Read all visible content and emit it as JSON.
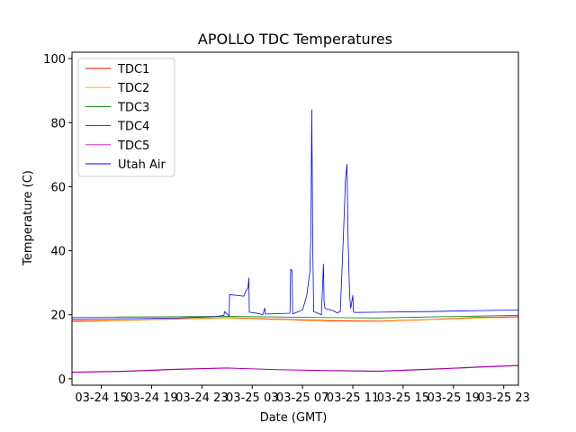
{
  "chart_data": {
    "type": "line",
    "title": "APOLLO TDC Temperatures",
    "xlabel": "Date (GMT)",
    "ylabel": "Temperature (C)",
    "x_type": "datetime",
    "xlim": [
      "2025-03-24 12:40",
      "2025-03-26 00:10"
    ],
    "ylim": [
      -2,
      102
    ],
    "x_ticks": [
      "03-24 15",
      "03-24 19",
      "03-24 23",
      "03-25 03",
      "03-25 07",
      "03-25 11",
      "03-25 15",
      "03-25 19",
      "03-25 23"
    ],
    "y_ticks": [
      "0",
      "20",
      "40",
      "60",
      "80",
      "100"
    ],
    "grid": false,
    "legend_position": "top-left",
    "series": [
      {
        "name": "TDC1",
        "color": "#ff0000",
        "x": [
          "2025-03-24 12:40",
          "2025-03-24 17:00",
          "2025-03-24 21:00",
          "2025-03-25 01:00",
          "2025-03-25 05:00",
          "2025-03-25 09:00",
          "2025-03-25 13:00",
          "2025-03-25 17:00",
          "2025-03-25 21:00",
          "2025-03-26 00:10"
        ],
        "values": [
          18.0,
          18.3,
          18.7,
          19.1,
          18.6,
          18.2,
          18.0,
          18.5,
          19.2,
          19.4
        ]
      },
      {
        "name": "TDC2",
        "color": "#ffa500",
        "x": [
          "2025-03-24 12:40",
          "2025-03-24 17:00",
          "2025-03-24 21:00",
          "2025-03-25 01:00",
          "2025-03-25 05:00",
          "2025-03-25 09:00",
          "2025-03-25 13:00",
          "2025-03-25 17:00",
          "2025-03-25 21:00",
          "2025-03-26 00:10"
        ],
        "values": [
          17.8,
          18.2,
          18.6,
          19.0,
          18.5,
          18.0,
          17.9,
          18.4,
          19.0,
          19.2
        ]
      },
      {
        "name": "TDC3",
        "color": "#008000",
        "x": [
          "2025-03-24 12:40",
          "2025-03-24 17:00",
          "2025-03-24 21:00",
          "2025-03-25 01:00",
          "2025-03-25 05:00",
          "2025-03-25 09:00",
          "2025-03-25 13:00",
          "2025-03-25 17:00",
          "2025-03-25 21:00",
          "2025-03-26 00:10"
        ],
        "values": [
          19.2,
          19.3,
          19.4,
          19.5,
          19.3,
          19.1,
          19.0,
          19.3,
          19.6,
          19.8
        ]
      },
      {
        "name": "TDC4",
        "color": "#800080",
        "x": [
          "2025-03-24 12:40",
          "2025-03-24 17:00",
          "2025-03-24 21:00",
          "2025-03-25 01:00",
          "2025-03-25 05:00",
          "2025-03-25 09:00",
          "2025-03-25 13:00",
          "2025-03-25 17:00",
          "2025-03-25 21:00",
          "2025-03-26 00:10"
        ],
        "values": [
          2.1,
          2.4,
          3.0,
          3.4,
          2.9,
          2.6,
          2.4,
          3.0,
          3.7,
          4.2
        ]
      },
      {
        "name": "TDC5",
        "color": "#c000c0",
        "x": [
          "2025-03-24 12:40",
          "2025-03-24 17:00",
          "2025-03-24 21:00",
          "2025-03-25 01:00",
          "2025-03-25 05:00",
          "2025-03-25 09:00",
          "2025-03-25 13:00",
          "2025-03-25 17:00",
          "2025-03-25 21:00",
          "2025-03-26 00:10"
        ],
        "values": [
          2.0,
          2.3,
          2.9,
          3.3,
          2.8,
          2.5,
          2.3,
          2.9,
          3.6,
          4.1
        ]
      },
      {
        "name": "Utah Air",
        "color": "#0000ff",
        "x": [
          "2025-03-24 12:40",
          "2025-03-24 17:00",
          "2025-03-24 21:00",
          "2025-03-25 00:00",
          "2025-03-25 00:45",
          "2025-03-25 00:48",
          "2025-03-25 01:10",
          "2025-03-25 01:12",
          "2025-03-25 02:20",
          "2025-03-25 02:30",
          "2025-03-25 02:40",
          "2025-03-25 02:44",
          "2025-03-25 02:46",
          "2025-03-25 03:30",
          "2025-03-25 03:50",
          "2025-03-25 04:00",
          "2025-03-25 04:02",
          "2025-03-25 06:00",
          "2025-03-25 06:03",
          "2025-03-25 06:10",
          "2025-03-25 06:13",
          "2025-03-25 07:00",
          "2025-03-25 07:20",
          "2025-03-25 07:35",
          "2025-03-25 07:40",
          "2025-03-25 07:44",
          "2025-03-25 07:49",
          "2025-03-25 07:53",
          "2025-03-25 08:20",
          "2025-03-25 08:30",
          "2025-03-25 08:40",
          "2025-03-25 08:43",
          "2025-03-25 08:47",
          "2025-03-25 09:30",
          "2025-03-25 09:45",
          "2025-03-25 10:00",
          "2025-03-25 10:15",
          "2025-03-25 10:25",
          "2025-03-25 10:32",
          "2025-03-25 10:38",
          "2025-03-25 10:45",
          "2025-03-25 10:50",
          "2025-03-25 11:00",
          "2025-03-25 11:03",
          "2025-03-25 11:06",
          "2025-03-25 11:10",
          "2025-03-25 13:00",
          "2025-03-25 17:00",
          "2025-03-25 21:00",
          "2025-03-26 00:10"
        ],
        "values": [
          18.6,
          18.8,
          19.0,
          19.4,
          19.8,
          21.0,
          19.6,
          26.3,
          25.8,
          27.5,
          28.5,
          31.5,
          20.8,
          20.4,
          20.0,
          22.1,
          20.2,
          20.5,
          34.2,
          33.8,
          20.3,
          21.5,
          26.0,
          33.5,
          46.0,
          84.0,
          40.0,
          21.0,
          20.3,
          20.0,
          35.8,
          24.0,
          22.0,
          21.2,
          20.6,
          21.0,
          45.0,
          62.5,
          67.0,
          42.0,
          26.0,
          22.0,
          26.0,
          21.0,
          20.8,
          20.7,
          20.8,
          21.0,
          21.3,
          21.5
        ]
      }
    ]
  }
}
